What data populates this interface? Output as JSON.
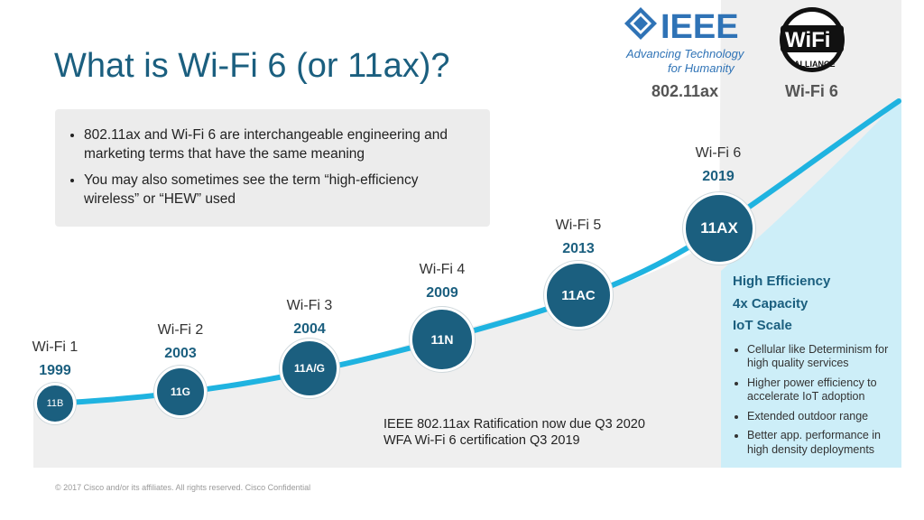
{
  "title": "What is Wi-Fi 6 (or 11ax)?",
  "info_bullets": [
    "802.11ax and Wi-Fi 6 are interchangeable engineering and marketing terms that have the same meaning",
    "You may also sometimes see the term “high-efficiency wireless” or “HEW” used"
  ],
  "logos": {
    "ieee_brand": "IEEE",
    "ieee_tagline_1": "Advancing Technology",
    "ieee_tagline_2": "for Humanity",
    "ieee_caption": "802.11ax",
    "wifi_brand": "WiFi",
    "wifi_alliance": "ALLIANCE",
    "wifi_caption": "Wi-Fi 6"
  },
  "generations": [
    {
      "name": "Wi-Fi 1",
      "year": "1999",
      "standard": "11B"
    },
    {
      "name": "Wi-Fi 2",
      "year": "2003",
      "standard": "11G"
    },
    {
      "name": "Wi-Fi 3",
      "year": "2004",
      "standard": "11A/G"
    },
    {
      "name": "Wi-Fi 4",
      "year": "2009",
      "standard": "11N"
    },
    {
      "name": "Wi-Fi 5",
      "year": "2013",
      "standard": "11AC"
    },
    {
      "name": "Wi-Fi 6",
      "year": "2019",
      "standard": "11AX"
    }
  ],
  "wifi6_panel": {
    "highlights": [
      "High Efficiency",
      "4x Capacity",
      "IoT Scale"
    ],
    "bullets": [
      "Cellular like Determinism for high quality services",
      "Higher power efficiency to accelerate IoT adoption",
      "Extended outdoor range",
      "Better app. performance in high density deployments"
    ]
  },
  "ratification_note": {
    "line1": "IEEE 802.11ax Ratification now due Q3 2020",
    "line2": "WFA Wi-Fi 6 certification Q3 2019"
  },
  "footer": "© 2017  Cisco and/or its affiliates. All rights reserved.   Cisco Confidential",
  "colors": {
    "title": "#1b5f7f",
    "node": "#1b5f7f",
    "curve": "#1fb3e0",
    "panel": "#cdeef8",
    "gray_area": "#efefef"
  }
}
